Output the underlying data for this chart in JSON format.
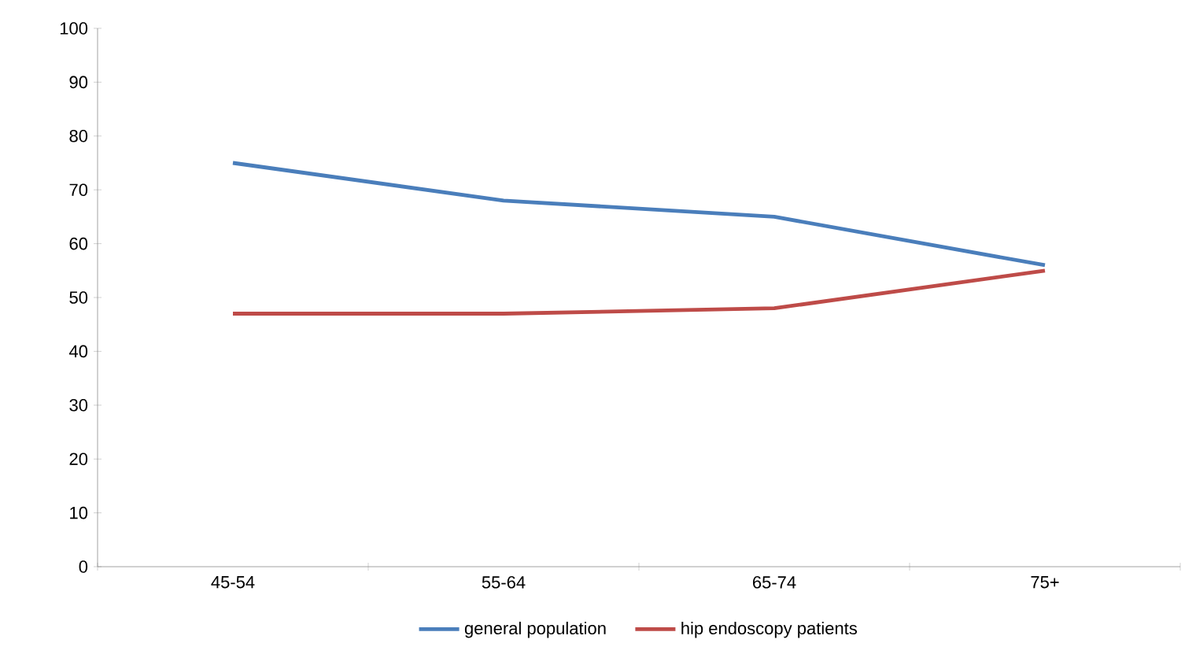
{
  "chart_data": {
    "type": "line",
    "categories": [
      "45-54",
      "55-64",
      "65-74",
      "75+"
    ],
    "series": [
      {
        "name": "general population",
        "color": "#4a7ebb",
        "values": [
          75,
          68,
          65,
          56
        ]
      },
      {
        "name": "hip endoscopy patients",
        "color": "#be4b48",
        "values": [
          47,
          47,
          48,
          55
        ]
      }
    ],
    "ylim": [
      0,
      100
    ],
    "yticks": [
      0,
      10,
      20,
      30,
      40,
      50,
      60,
      70,
      80,
      90,
      100
    ],
    "grid": false,
    "legend": "bottom",
    "marker": "none",
    "line_style": "solid"
  }
}
